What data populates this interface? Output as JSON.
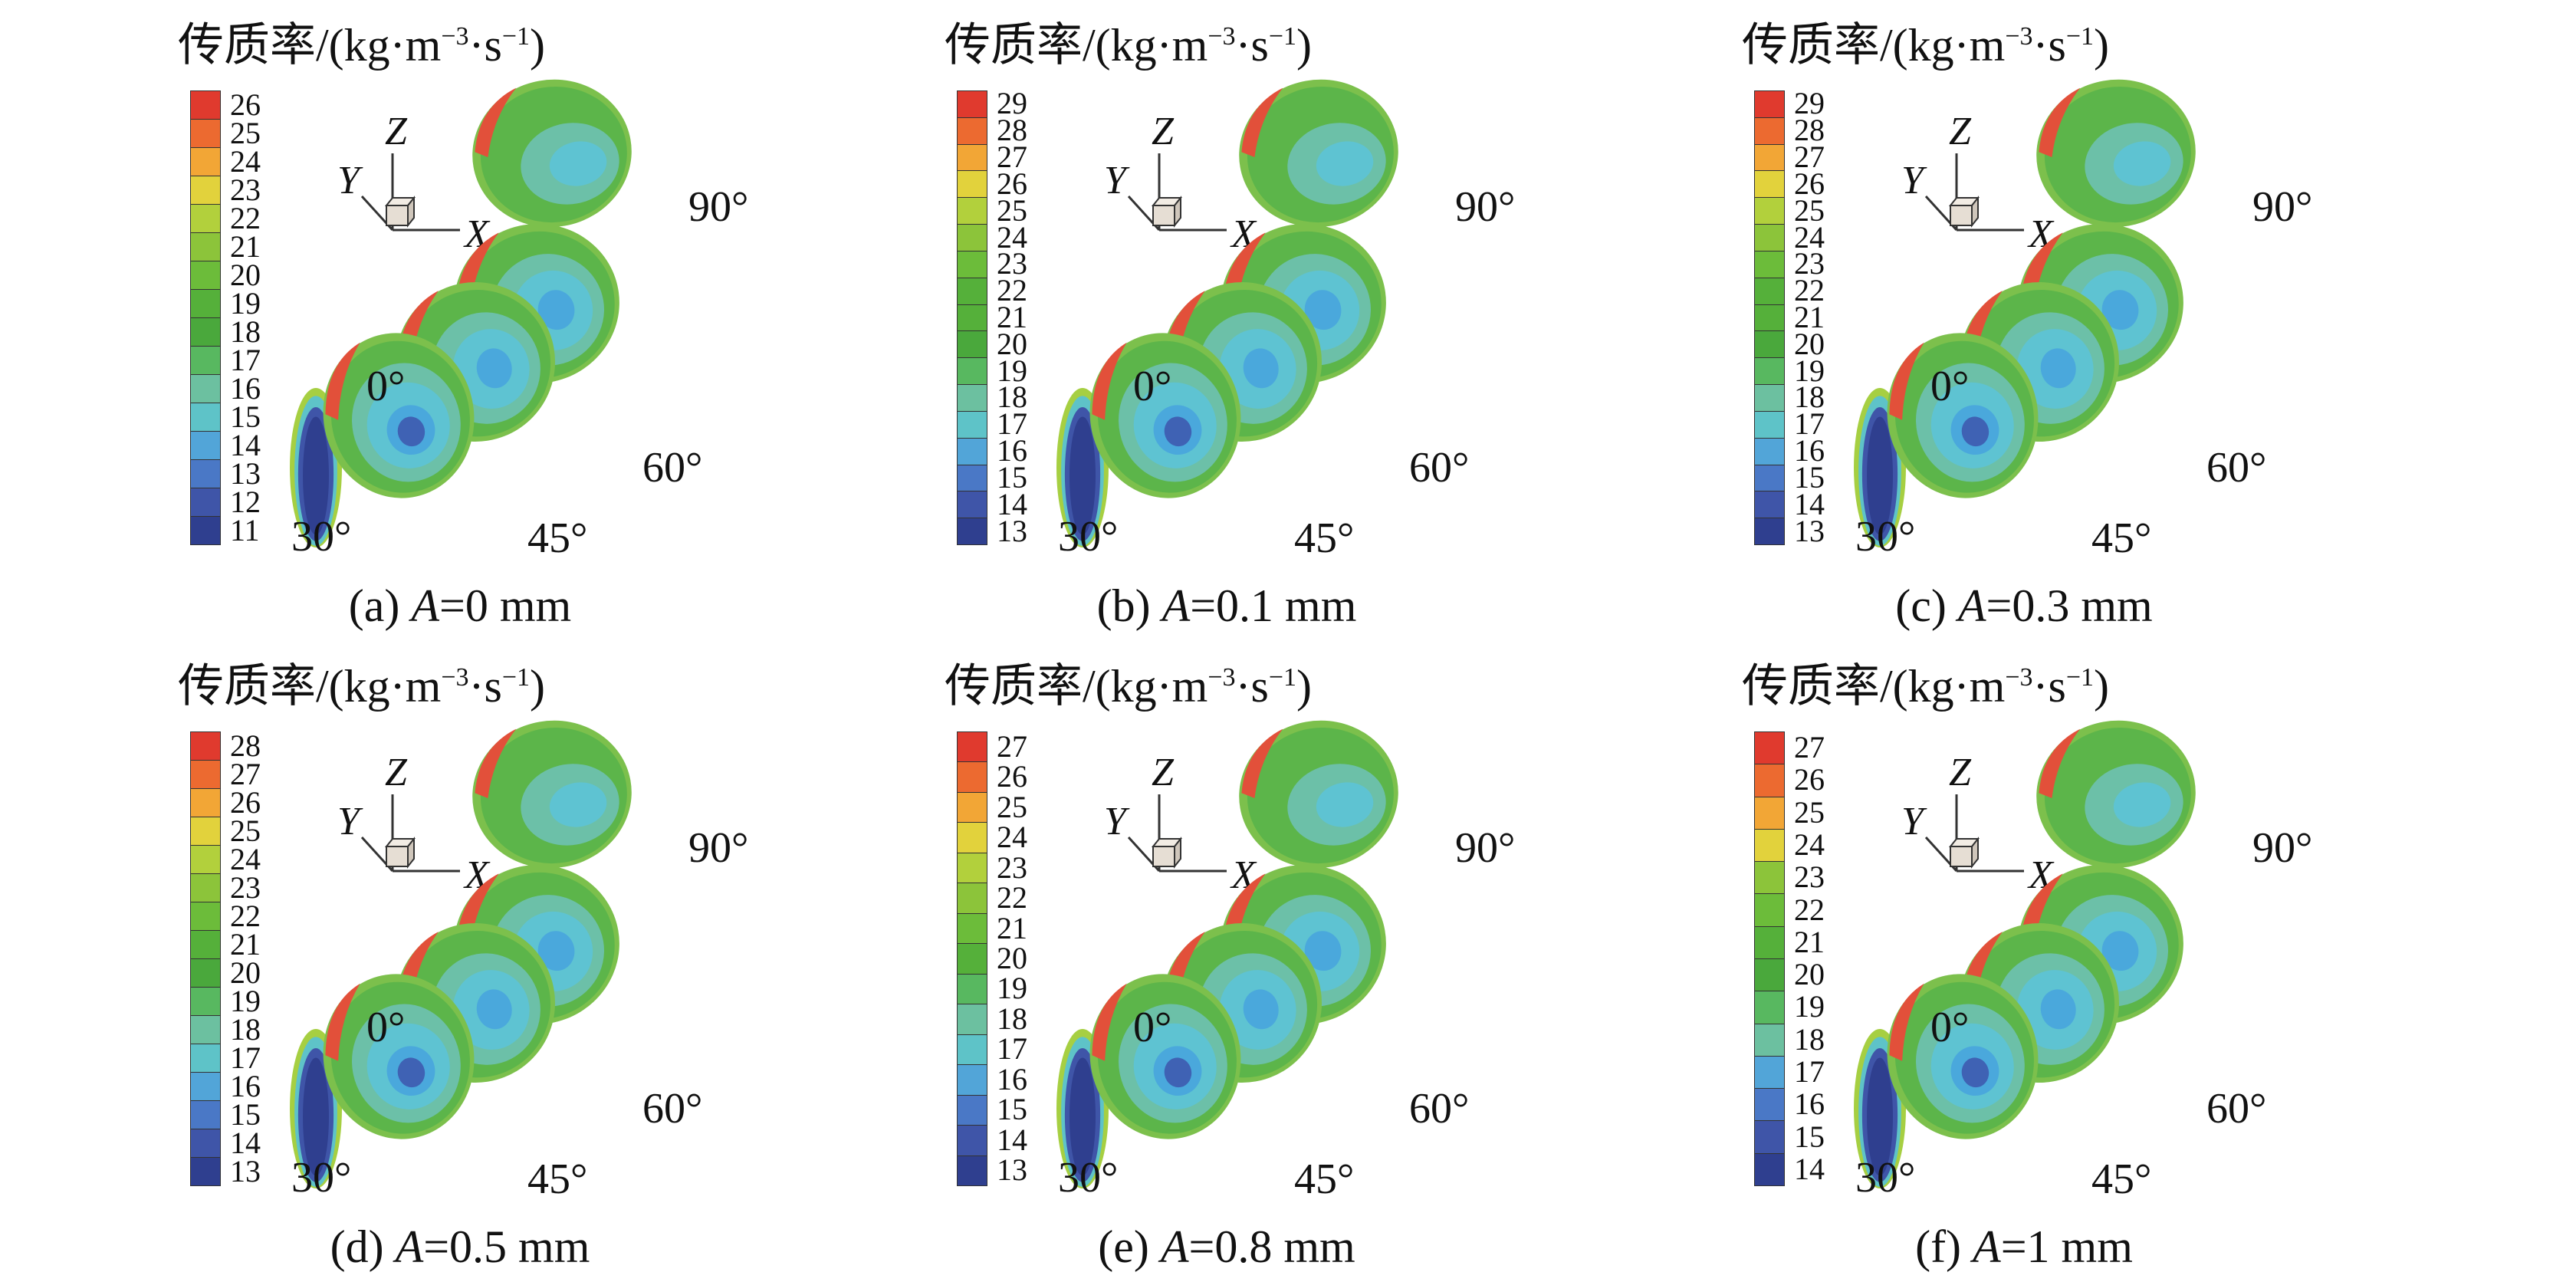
{
  "title_text": "传质率/(kg·m",
  "title_exp1": "−3",
  "title_mid": "·s",
  "title_exp2": "−1",
  "title_close": ")",
  "colormap": [
    "#2f3f8f",
    "#3f55a8",
    "#4a78c6",
    "#52a5d8",
    "#5ec3c8",
    "#6cc0a0",
    "#58b860",
    "#4aa83c",
    "#55b03a",
    "#6cbc3a",
    "#8cc43a",
    "#b2d03c",
    "#e2d23c",
    "#f2a636",
    "#ec6a30",
    "#e03a2e"
  ],
  "axis_labels": {
    "x": "X",
    "y": "Y",
    "z": "Z"
  },
  "panels": [
    {
      "id": "a",
      "caption_pre": "(a) ",
      "caption_var": "A",
      "caption_post": "=0 mm",
      "ticks": [
        "26",
        "25",
        "24",
        "23",
        "22",
        "21",
        "20",
        "19",
        "18",
        "17",
        "16",
        "15",
        "14",
        "13",
        "12",
        "11"
      ],
      "angles": [
        "0°",
        "30°",
        "45°",
        "60°",
        "90°"
      ]
    },
    {
      "id": "b",
      "caption_pre": "(b) ",
      "caption_var": "A",
      "caption_post": "=0.1 mm",
      "ticks": [
        "29",
        "28",
        "27",
        "26",
        "25",
        "24",
        "23",
        "22",
        "21",
        "20",
        "19",
        "18",
        "17",
        "16",
        "15",
        "14",
        "13"
      ],
      "angles": [
        "0°",
        "30°",
        "45°",
        "60°",
        "90°"
      ]
    },
    {
      "id": "c",
      "caption_pre": "(c) ",
      "caption_var": "A",
      "caption_post": "=0.3 mm",
      "ticks": [
        "29",
        "28",
        "27",
        "26",
        "25",
        "24",
        "23",
        "22",
        "21",
        "20",
        "19",
        "18",
        "17",
        "16",
        "15",
        "14",
        "13"
      ],
      "angles": [
        "0°",
        "30°",
        "45°",
        "60°",
        "90°"
      ]
    },
    {
      "id": "d",
      "caption_pre": "(d) ",
      "caption_var": "A",
      "caption_post": "=0.5 mm",
      "ticks": [
        "28",
        "27",
        "26",
        "25",
        "24",
        "23",
        "22",
        "21",
        "20",
        "19",
        "18",
        "17",
        "16",
        "15",
        "14",
        "13"
      ],
      "angles": [
        "0°",
        "30°",
        "45°",
        "60°",
        "90°"
      ]
    },
    {
      "id": "e",
      "caption_pre": "(e) ",
      "caption_var": "A",
      "caption_post": "=0.8 mm",
      "ticks": [
        "27",
        "26",
        "25",
        "24",
        "23",
        "22",
        "21",
        "20",
        "19",
        "18",
        "17",
        "16",
        "15",
        "14",
        "13"
      ],
      "angles": [
        "0°",
        "30°",
        "45°",
        "60°",
        "90°"
      ]
    },
    {
      "id": "f",
      "caption_pre": "(f) ",
      "caption_var": "A",
      "caption_post": "=1 mm",
      "ticks": [
        "27",
        "26",
        "25",
        "24",
        "23",
        "22",
        "21",
        "20",
        "19",
        "18",
        "17",
        "16",
        "15",
        "14"
      ],
      "angles": [
        "0°",
        "30°",
        "45°",
        "60°",
        "90°"
      ]
    }
  ]
}
